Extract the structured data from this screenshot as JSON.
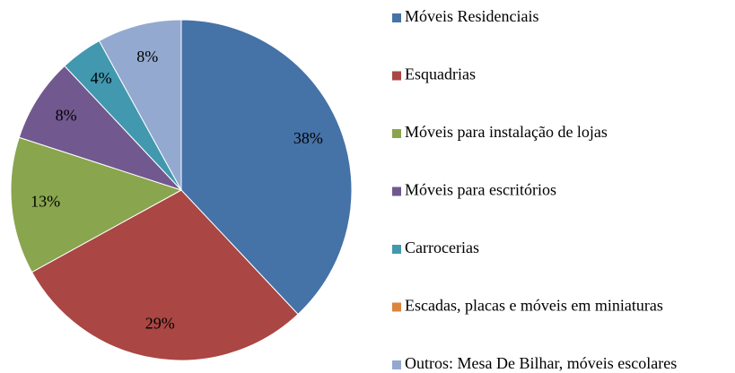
{
  "chart_data": {
    "type": "pie",
    "categories": [
      "Móveis Residenciais",
      "Esquadrias",
      "Móveis para instalação de lojas",
      "Móveis para escritórios",
      "Carrocerias",
      "Escadas, placas e móveis em miniaturas",
      "Outros: Mesa De Bilhar, móveis escolares"
    ],
    "values": [
      38,
      29,
      13,
      8,
      4,
      0,
      8
    ],
    "value_labels": [
      "38%",
      "29%",
      "13%",
      "8%",
      "4%",
      null,
      "8%"
    ],
    "colors": [
      "#4572a7",
      "#aa4643",
      "#89a54e",
      "#71588f",
      "#4198af",
      "#db843d",
      "#93a9cf"
    ]
  }
}
